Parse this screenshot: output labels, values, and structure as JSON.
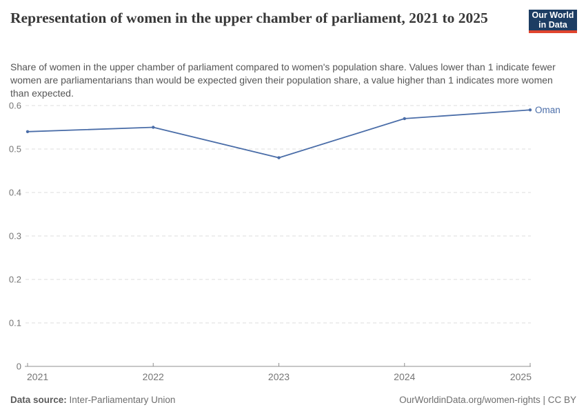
{
  "header": {
    "title": "Representation of women in the upper chamber of parliament, 2021 to 2025",
    "subtitle": "Share of women in the upper chamber of parliament compared to women's population share. Values lower than 1 indicate fewer women are parliamentarians than would be expected given their population share, a value higher than 1 indicates more women than expected.",
    "logo": {
      "line1": "Our World",
      "line2": "in Data"
    }
  },
  "chart_data": {
    "type": "line",
    "title": "Representation of women in the upper chamber of parliament, 2021 to 2025",
    "x": [
      2021,
      2022,
      2023,
      2024,
      2025
    ],
    "x_tick_labels": [
      "2021",
      "2022",
      "2023",
      "2024",
      "2025"
    ],
    "series": [
      {
        "name": "Oman",
        "values": [
          0.54,
          0.55,
          0.48,
          0.57,
          0.59
        ]
      }
    ],
    "xlim": [
      2021,
      2025
    ],
    "ylim": [
      0,
      0.6
    ],
    "y_ticks": [
      0,
      0.1,
      0.2,
      0.3,
      0.4,
      0.5,
      0.6
    ],
    "grid": "horizontal-dashed",
    "legend_position": "line-end-label",
    "xlabel": "",
    "ylabel": ""
  },
  "footer": {
    "source_label": "Data source:",
    "source_value": "Inter-Parliamentary Union",
    "rights": "OurWorldinData.org/women-rights | CC BY"
  },
  "colors": {
    "line": "#4a6da8",
    "grid": "#dedede",
    "axis": "#8f8f8f",
    "tick_text": "#757575",
    "title_text": "#383838",
    "subtitle_text": "#555555",
    "footer_text": "#6e6e6e",
    "logo_bg": "#1d3d63",
    "logo_accent": "#e0442e"
  }
}
